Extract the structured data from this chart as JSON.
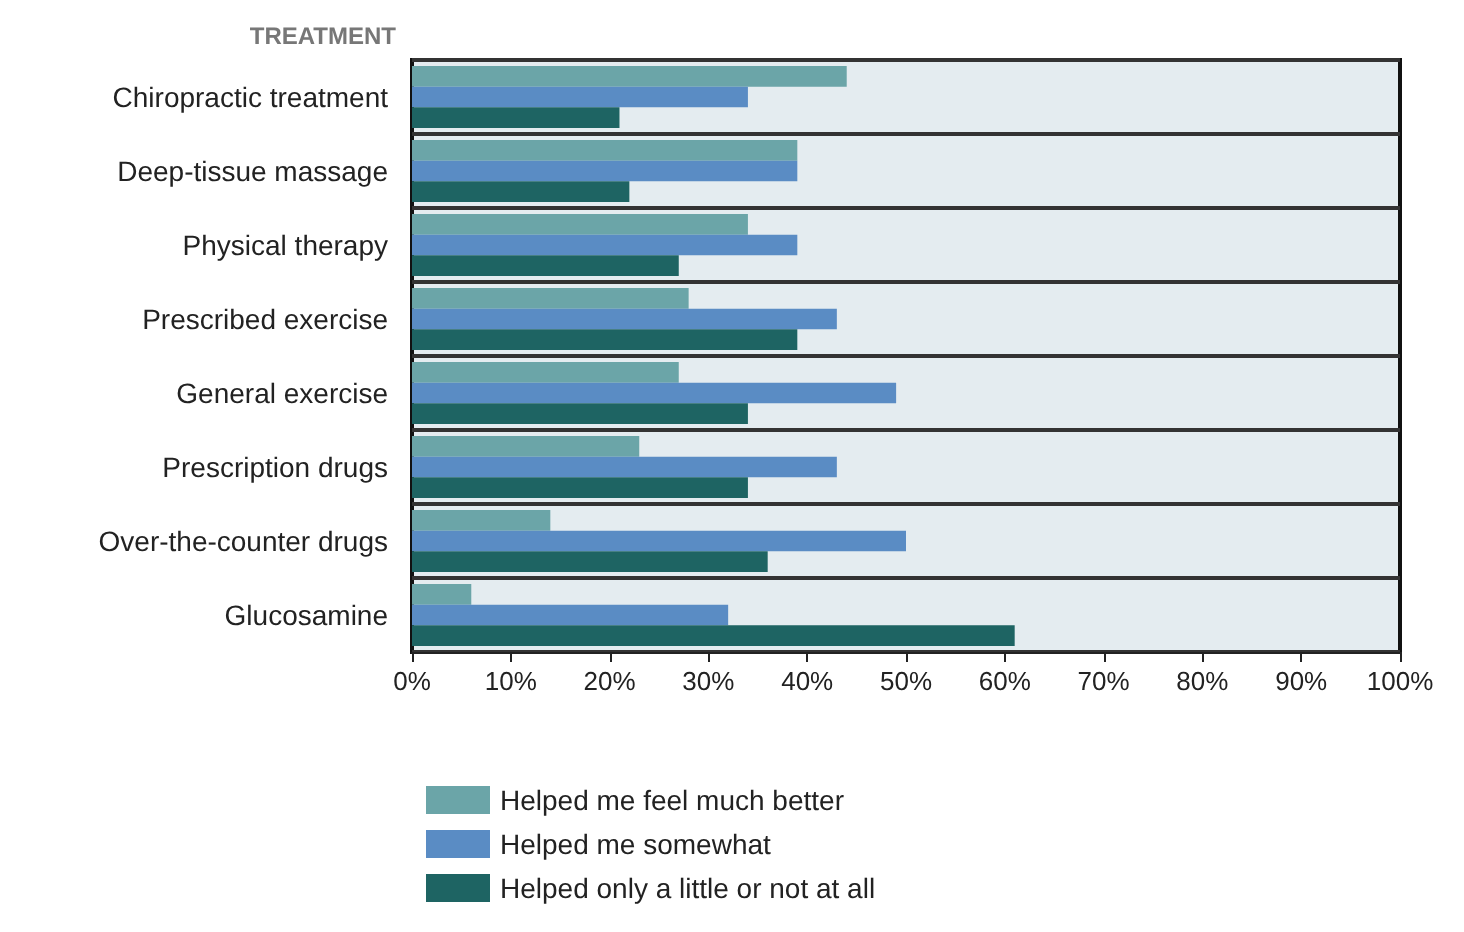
{
  "chart_data": {
    "type": "bar",
    "orientation": "horizontal",
    "ylabel": "TREATMENT",
    "categories": [
      "Chiropractic treatment",
      "Deep-tissue massage",
      "Physical therapy",
      "Prescribed exercise",
      "General exercise",
      "Prescription drugs",
      "Over-the-counter drugs",
      "Glucosamine"
    ],
    "series": [
      {
        "name": "Helped me feel much better",
        "color": "#6ba5a8",
        "values": [
          44,
          39,
          34,
          28,
          27,
          23,
          14,
          6
        ]
      },
      {
        "name": "Helped me somewhat",
        "color": "#5a8cc4",
        "values": [
          34,
          39,
          39,
          43,
          49,
          43,
          50,
          32
        ]
      },
      {
        "name": "Helped only a little or not at all",
        "color": "#1e6463",
        "values": [
          21,
          22,
          27,
          39,
          34,
          34,
          36,
          61
        ]
      }
    ],
    "xlim": [
      0,
      100
    ],
    "xticks": [
      {
        "value": 0,
        "label": "0%"
      },
      {
        "value": 10,
        "label": "10%"
      },
      {
        "value": 20,
        "label": "20%"
      },
      {
        "value": 30,
        "label": "30%"
      },
      {
        "value": 40,
        "label": "40%"
      },
      {
        "value": 50,
        "label": "50%"
      },
      {
        "value": 60,
        "label": "60%"
      },
      {
        "value": 70,
        "label": "70%"
      },
      {
        "value": 80,
        "label": "80%"
      },
      {
        "value": 90,
        "label": "90%"
      },
      {
        "value": 100,
        "label": "100%"
      }
    ],
    "grid": "y",
    "legend": "bottom left"
  }
}
